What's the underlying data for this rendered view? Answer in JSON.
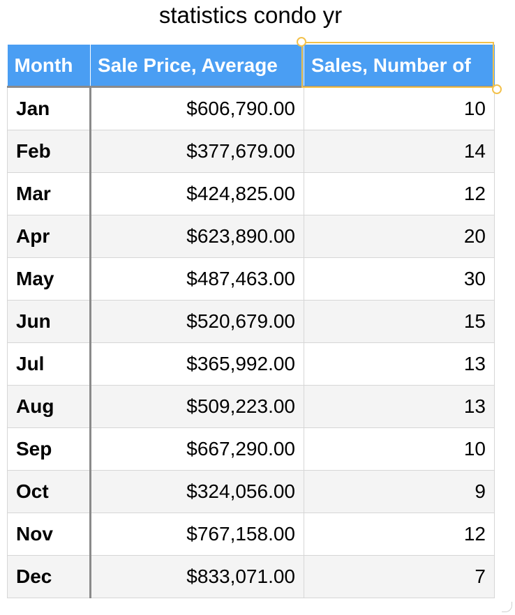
{
  "title": "statistics condo yr",
  "table": {
    "headers": [
      "Month",
      "Sale Price, Average",
      "Sales, Number of"
    ],
    "rows": [
      {
        "month": "Jan",
        "price": "$606,790.00",
        "count": "10"
      },
      {
        "month": "Feb",
        "price": "$377,679.00",
        "count": "14"
      },
      {
        "month": "Mar",
        "price": "$424,825.00",
        "count": "12"
      },
      {
        "month": "Apr",
        "price": "$623,890.00",
        "count": "20"
      },
      {
        "month": "May",
        "price": "$487,463.00",
        "count": "30"
      },
      {
        "month": "Jun",
        "price": "$520,679.00",
        "count": "15"
      },
      {
        "month": "Jul",
        "price": "$365,992.00",
        "count": "13"
      },
      {
        "month": "Aug",
        "price": "$509,223.00",
        "count": "13"
      },
      {
        "month": "Sep",
        "price": "$667,290.00",
        "count": "10"
      },
      {
        "month": "Oct",
        "price": "$324,056.00",
        "count": "9"
      },
      {
        "month": "Nov",
        "price": "$767,158.00",
        "count": "12"
      },
      {
        "month": "Dec",
        "price": "$833,071.00",
        "count": "7"
      }
    ],
    "selected_column": "Sales, Number of"
  },
  "colors": {
    "header_bg": "#4a9ef3",
    "header_text": "#ffffff",
    "selection": "#f3c14b",
    "alt_row": "#f4f4f4"
  }
}
